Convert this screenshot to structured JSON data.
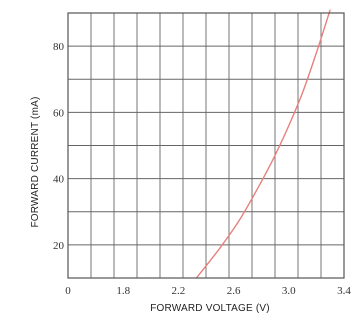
{
  "chart_data": {
    "type": "line",
    "xlabel": "FORWARD VOLTAGE (V)",
    "ylabel": "FORWARD CURRENT (mA)",
    "xlim": [
      1.4,
      3.4
    ],
    "ylim": [
      10,
      90
    ],
    "x_ticks": [
      "0",
      "1.8",
      "2.2",
      "2.6",
      "3.0",
      "3.4"
    ],
    "y_ticks": [
      20,
      40,
      60,
      80
    ],
    "grid": true,
    "series": [
      {
        "color": "#e8807c",
        "x": [
          2.33,
          2.5,
          2.65,
          2.8,
          2.9,
          3.0,
          3.1,
          3.2,
          3.3
        ],
        "y": [
          10,
          19,
          28,
          39,
          47,
          56,
          66,
          78,
          91
        ]
      }
    ]
  }
}
